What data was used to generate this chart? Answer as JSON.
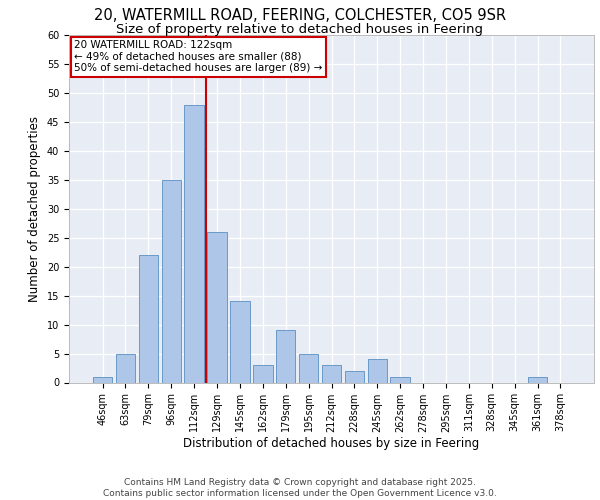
{
  "title_line1": "20, WATERMILL ROAD, FEERING, COLCHESTER, CO5 9SR",
  "title_line2": "Size of property relative to detached houses in Feering",
  "xlabel": "Distribution of detached houses by size in Feering",
  "ylabel": "Number of detached properties",
  "categories": [
    "46sqm",
    "63sqm",
    "79sqm",
    "96sqm",
    "112sqm",
    "129sqm",
    "145sqm",
    "162sqm",
    "179sqm",
    "195sqm",
    "212sqm",
    "228sqm",
    "245sqm",
    "262sqm",
    "278sqm",
    "295sqm",
    "311sqm",
    "328sqm",
    "345sqm",
    "361sqm",
    "378sqm"
  ],
  "values": [
    1,
    5,
    22,
    35,
    48,
    26,
    14,
    3,
    9,
    5,
    3,
    2,
    4,
    1,
    0,
    0,
    0,
    0,
    0,
    1,
    0
  ],
  "bar_color": "#aec6e8",
  "bar_edgecolor": "#5a8fc2",
  "vline_x": 4.5,
  "vline_color": "#cc0000",
  "annotation_text": "20 WATERMILL ROAD: 122sqm\n← 49% of detached houses are smaller (88)\n50% of semi-detached houses are larger (89) →",
  "annotation_box_color": "#ffffff",
  "annotation_edge_color": "#cc0000",
  "ylim": [
    0,
    60
  ],
  "yticks": [
    0,
    5,
    10,
    15,
    20,
    25,
    30,
    35,
    40,
    45,
    50,
    55,
    60
  ],
  "bg_color": "#e8edf5",
  "grid_color": "#ffffff",
  "footer_text": "Contains HM Land Registry data © Crown copyright and database right 2025.\nContains public sector information licensed under the Open Government Licence v3.0.",
  "title_fontsize": 10.5,
  "subtitle_fontsize": 9.5,
  "axis_label_fontsize": 8.5,
  "tick_fontsize": 7,
  "annotation_fontsize": 7.5,
  "footer_fontsize": 6.5
}
